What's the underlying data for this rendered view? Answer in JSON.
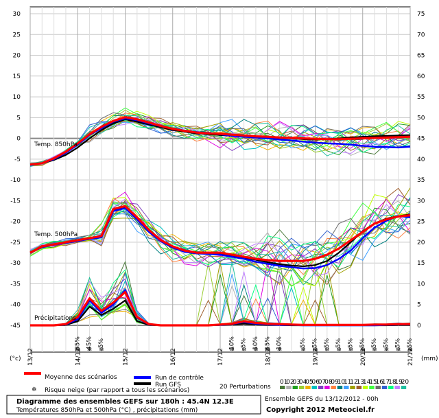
{
  "chart_data": {
    "type": "line",
    "title": "Diagramme des ensembles GEFS sur 180h : 45.4N 12.3E",
    "subtitle": "Températures 850hPa et 500hPa (°C) , précipitations (mm)",
    "run_info": "Ensemble GEFS du 13/12/2012 - 00h",
    "copyright": "Copyright 2012 Meteociel.fr",
    "y_left_unit": "(°c)",
    "y_right_unit": "(mm)",
    "ylim_left": [
      -45,
      30
    ],
    "ylim_right": [
      0,
      75
    ],
    "y_left_ticks": [
      30,
      25,
      20,
      15,
      10,
      5,
      0,
      -5,
      -10,
      -15,
      -20,
      -25,
      -30,
      -35,
      -40,
      -45
    ],
    "y_right_ticks": [
      75,
      70,
      65,
      60,
      55,
      50,
      45,
      40,
      35,
      30,
      25,
      20,
      15,
      10,
      5,
      0
    ],
    "xlim_hours": [
      0,
      192
    ],
    "x_date_labels": [
      {
        "h": 0,
        "label": "13/12"
      },
      {
        "h": 24,
        "label": "14/12"
      },
      {
        "h": 48,
        "label": "15/12"
      },
      {
        "h": 72,
        "label": "16/12"
      },
      {
        "h": 96,
        "label": "17/12"
      },
      {
        "h": 120,
        "label": "18/12"
      },
      {
        "h": 144,
        "label": "19/12"
      },
      {
        "h": 168,
        "label": "20/12"
      },
      {
        "h": 192,
        "label": "21/12"
      }
    ],
    "section_labels": {
      "t850": "Temp. 850hPa",
      "t500": "Temp. 500hPa",
      "precip": "Précipitations"
    },
    "snow_risk": {
      "legend": "Risque neige (par rapport a tous les scénarios)",
      "points": [
        {
          "h": 24,
          "pct": "35%"
        },
        {
          "h": 30,
          "pct": "45%"
        },
        {
          "h": 36,
          "pct": "5%"
        },
        {
          "h": 102,
          "pct": "10%"
        },
        {
          "h": 108,
          "pct": "5%"
        },
        {
          "h": 114,
          "pct": "10%"
        },
        {
          "h": 120,
          "pct": "15%"
        },
        {
          "h": 126,
          "pct": "10%"
        },
        {
          "h": 138,
          "pct": "5%"
        },
        {
          "h": 144,
          "pct": "5%"
        },
        {
          "h": 150,
          "pct": "5%"
        },
        {
          "h": 156,
          "pct": "5%"
        },
        {
          "h": 162,
          "pct": "5%"
        },
        {
          "h": 168,
          "pct": "5%"
        },
        {
          "h": 174,
          "pct": "5%"
        },
        {
          "h": 180,
          "pct": "5%"
        },
        {
          "h": 186,
          "pct": "5%"
        },
        {
          "h": 192,
          "pct": "5%"
        }
      ]
    },
    "legend": {
      "mean": "Moyenne des scénarios",
      "control": "Run de contrôle",
      "gfs": "Run GFS",
      "perturbations": "20 Perturbations",
      "pert_numbers": [
        "01",
        "02",
        "03",
        "04",
        "05",
        "06",
        "07",
        "08",
        "09",
        "10",
        "11",
        "12",
        "13",
        "14",
        "15",
        "16",
        "17",
        "18",
        "19",
        "20"
      ]
    },
    "colors": {
      "mean": "#ff0000",
      "control": "#0000ff",
      "gfs": "#000000",
      "perturbations": [
        "#4a7a3a",
        "#b0b0b0",
        "#20a020",
        "#9acd32",
        "#f0b000",
        "#00c0c0",
        "#8040c0",
        "#e000e0",
        "#ff8040",
        "#008080",
        "#40a0ff",
        "#a0a000",
        "#a06030",
        "#c0ff00",
        "#40ff40",
        "#707070",
        "#3060d0",
        "#00ff80",
        "#c080ff",
        "#20c0a0"
      ]
    },
    "series": [
      {
        "name": "Moyenne des scénarios",
        "x": [
          0,
          6,
          12,
          18,
          24,
          30,
          36,
          42,
          48,
          54,
          60,
          66,
          72,
          78,
          84,
          90,
          96,
          102,
          108,
          114,
          120,
          126,
          132,
          138,
          144,
          150,
          156,
          162,
          168,
          174,
          180,
          186,
          192
        ],
        "t850": [
          -6.3,
          -6.0,
          -4.8,
          -3.2,
          -1.2,
          1.0,
          2.8,
          4.2,
          5.1,
          4.6,
          3.8,
          3.0,
          2.3,
          1.8,
          1.4,
          1.2,
          1.1,
          0.9,
          0.7,
          0.5,
          0.4,
          0.2,
          0.1,
          0.0,
          -0.1,
          -0.2,
          -0.2,
          -0.1,
          0.0,
          0.1,
          0.2,
          0.3,
          0.4
        ],
        "t500": [
          -27.5,
          -26.0,
          -25.5,
          -25.0,
          -24.5,
          -24.0,
          -23.5,
          -17.0,
          -16.3,
          -19.0,
          -22.0,
          -24.5,
          -26.0,
          -27.0,
          -27.5,
          -27.5,
          -27.5,
          -28.0,
          -28.5,
          -29.0,
          -29.3,
          -29.5,
          -29.5,
          -29.5,
          -29.0,
          -28.0,
          -26.5,
          -24.5,
          -22.5,
          -20.5,
          -19.5,
          -18.8,
          -18.5
        ],
        "precip": [
          0,
          0,
          0,
          0.3,
          2.0,
          6.5,
          3.5,
          5.5,
          8.0,
          2.0,
          0.3,
          0,
          0,
          0,
          0,
          0,
          0.2,
          0.4,
          1.0,
          0.6,
          0.4,
          0.3,
          0.2,
          0.1,
          0.1,
          0.1,
          0.1,
          0.1,
          0.1,
          0.2,
          0.2,
          0.3,
          0.3
        ]
      },
      {
        "name": "Run de contrôle",
        "x": [
          0,
          6,
          12,
          18,
          24,
          30,
          36,
          42,
          48,
          54,
          60,
          66,
          72,
          78,
          84,
          90,
          96,
          102,
          108,
          114,
          120,
          126,
          132,
          138,
          144,
          150,
          156,
          162,
          168,
          174,
          180,
          186,
          192
        ],
        "t850": [
          -6.3,
          -6.0,
          -5.0,
          -3.5,
          -1.5,
          0.8,
          2.5,
          4.0,
          4.8,
          4.4,
          3.6,
          2.9,
          2.4,
          1.9,
          1.5,
          1.3,
          1.0,
          0.6,
          0.4,
          0.2,
          0.0,
          -0.3,
          -0.5,
          -0.8,
          -1.0,
          -1.2,
          -1.3,
          -1.5,
          -1.8,
          -2.0,
          -2.1,
          -2.2,
          -2.0
        ],
        "t500": [
          -27.5,
          -26.2,
          -25.6,
          -25.2,
          -24.7,
          -24.2,
          -23.8,
          -17.5,
          -16.8,
          -19.5,
          -22.5,
          -24.8,
          -26.3,
          -27.3,
          -27.7,
          -27.8,
          -28.0,
          -28.5,
          -29.0,
          -29.7,
          -30.2,
          -30.7,
          -31.0,
          -31.3,
          -31.2,
          -30.5,
          -29.0,
          -27.0,
          -24.0,
          -21.5,
          -19.8,
          -18.7,
          -19.0
        ],
        "precip": [
          0,
          0,
          0,
          0.2,
          1.5,
          6.0,
          3.0,
          5.0,
          8.5,
          1.8,
          0.2,
          0,
          0,
          0,
          0,
          0,
          0.1,
          0.3,
          0.8,
          0.4,
          0.2,
          0.1,
          0.1,
          0,
          0,
          0,
          0,
          0,
          0,
          0,
          0.1,
          0.2,
          0.2
        ]
      },
      {
        "name": "Run GFS",
        "x": [
          0,
          6,
          12,
          18,
          24,
          30,
          36,
          42,
          48,
          54,
          60,
          66,
          72,
          78,
          84,
          90,
          96,
          102,
          108,
          114,
          120,
          126,
          132,
          138,
          144,
          150,
          156,
          162,
          168,
          174,
          180,
          186,
          192
        ],
        "t850": [
          -6.3,
          -6.0,
          -5.2,
          -4.0,
          -2.2,
          0.0,
          2.0,
          3.6,
          4.6,
          4.0,
          3.3,
          2.7,
          2.0,
          1.6,
          1.2,
          1.0,
          0.8,
          0.6,
          0.5,
          0.4,
          0.3,
          0.1,
          0.0,
          -0.2,
          -0.3,
          -0.2,
          0.0,
          0.2,
          0.4,
          0.5,
          0.6,
          0.7,
          0.8
        ],
        "t500": [
          -27.5,
          -26.1,
          -25.5,
          -25.1,
          -24.6,
          -24.1,
          -23.6,
          -17.2,
          -16.5,
          -19.3,
          -22.3,
          -24.7,
          -26.2,
          -27.0,
          -27.4,
          -27.6,
          -27.8,
          -28.2,
          -28.7,
          -29.2,
          -29.8,
          -30.3,
          -30.6,
          -30.8,
          -30.5,
          -29.5,
          -27.5,
          -25.0,
          -22.3,
          -20.5,
          -19.3,
          -18.7,
          -18.3
        ],
        "precip": [
          0,
          0,
          0,
          0.1,
          1.0,
          4.5,
          2.5,
          4.0,
          6.0,
          1.0,
          0.1,
          0,
          0,
          0,
          0,
          0,
          0.1,
          0.2,
          0.4,
          0.2,
          0.1,
          0.1,
          0,
          0,
          0,
          0,
          0,
          0,
          0,
          0,
          0,
          0.1,
          0.1
        ]
      }
    ]
  }
}
